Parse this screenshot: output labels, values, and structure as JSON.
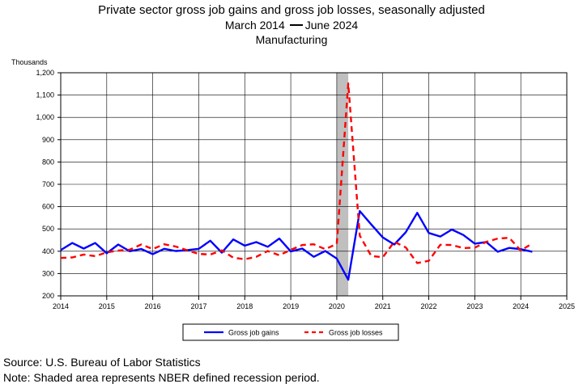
{
  "title": {
    "line1": "Private sector gross job gains and gross job losses, seasonally adjusted",
    "line2_start": "March 2014",
    "line2_end": "June 2024",
    "line3": "Manufacturing"
  },
  "footer": {
    "source": "Source: U.S. Bureau of Labor Statistics",
    "note": "Note: Shaded area represents NBER defined recession period."
  },
  "colors": {
    "gains": "#0000ff",
    "losses": "#ff0000",
    "recession": "#bfbfbf"
  },
  "chart_data": {
    "type": "line",
    "ylabel": "Thousands",
    "ylim": [
      200,
      1200
    ],
    "yticks": [
      200,
      300,
      400,
      500,
      600,
      700,
      800,
      900,
      1000,
      1100,
      1200
    ],
    "ytick_labels": [
      "200",
      "300",
      "400",
      "500",
      "600",
      "700",
      "800",
      "900",
      "1,000",
      "1,100",
      "1,200"
    ],
    "xlim": [
      2014,
      2025
    ],
    "xticks": [
      2014,
      2015,
      2016,
      2017,
      2018,
      2019,
      2020,
      2021,
      2022,
      2023,
      2024,
      2025
    ],
    "xtick_labels": [
      "2014",
      "2015",
      "2016",
      "2017",
      "2018",
      "2019",
      "2020",
      "2021",
      "2022",
      "2023",
      "2024",
      "2025"
    ],
    "grid": true,
    "legend_position": "bottom",
    "recession": [
      2020.0,
      2020.25
    ],
    "series": [
      {
        "name": "Gross job gains",
        "style": "solid",
        "x": [
          2014.0,
          2014.25,
          2014.5,
          2014.75,
          2015.0,
          2015.25,
          2015.5,
          2015.75,
          2016.0,
          2016.25,
          2016.5,
          2016.75,
          2017.0,
          2017.25,
          2017.5,
          2017.75,
          2018.0,
          2018.25,
          2018.5,
          2018.75,
          2019.0,
          2019.25,
          2019.5,
          2019.75,
          2020.0,
          2020.25,
          2020.5,
          2020.75,
          2021.0,
          2021.25,
          2021.5,
          2021.75,
          2022.0,
          2022.25,
          2022.5,
          2022.75,
          2023.0,
          2023.25,
          2023.5,
          2023.75,
          2024.0,
          2024.25
        ],
        "values": [
          405,
          437,
          412,
          437,
          391,
          430,
          400,
          410,
          387,
          411,
          401,
          405,
          411,
          447,
          394,
          453,
          425,
          441,
          420,
          457,
          399,
          412,
          375,
          401,
          367,
          272,
          580,
          520,
          462,
          430,
          485,
          572,
          482,
          466,
          497,
          473,
          434,
          441,
          398,
          415,
          409,
          398
        ]
      },
      {
        "name": "Gross job losses",
        "style": "dashed",
        "x": [
          2014.0,
          2014.25,
          2014.5,
          2014.75,
          2015.0,
          2015.25,
          2015.5,
          2015.75,
          2016.0,
          2016.25,
          2016.5,
          2016.75,
          2017.0,
          2017.25,
          2017.5,
          2017.75,
          2018.0,
          2018.25,
          2018.5,
          2018.75,
          2019.0,
          2019.25,
          2019.5,
          2019.75,
          2020.0,
          2020.25,
          2020.5,
          2020.75,
          2021.0,
          2021.25,
          2021.5,
          2021.75,
          2022.0,
          2022.25,
          2022.5,
          2022.75,
          2023.0,
          2023.25,
          2023.5,
          2023.75,
          2024.0,
          2024.25
        ],
        "values": [
          370,
          372,
          385,
          378,
          395,
          403,
          407,
          430,
          410,
          431,
          421,
          404,
          388,
          385,
          404,
          371,
          364,
          375,
          401,
          382,
          406,
          428,
          431,
          409,
          433,
          1152,
          470,
          379,
          373,
          442,
          417,
          347,
          357,
          429,
          428,
          414,
          416,
          442,
          457,
          460,
          403,
          435
        ]
      }
    ]
  }
}
